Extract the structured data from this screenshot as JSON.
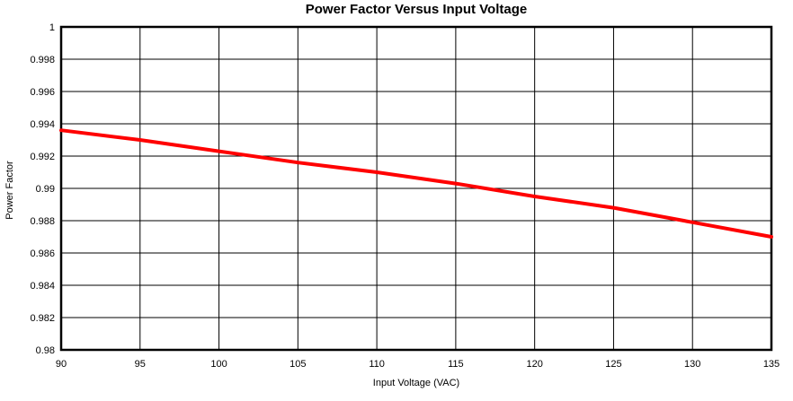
{
  "chart_data": {
    "type": "line",
    "title": "Power Factor Versus Input Voltage",
    "xlabel": "Input Voltage (VAC)",
    "ylabel": "Power Factor",
    "xlim": [
      90,
      135
    ],
    "ylim": [
      0.98,
      1.0
    ],
    "grid": true,
    "legend": false,
    "x_ticks": [
      90,
      95,
      100,
      105,
      110,
      115,
      120,
      125,
      130,
      135
    ],
    "x_tick_labels": [
      "90",
      "95",
      "100",
      "105",
      "110",
      "115",
      "120",
      "125",
      "130",
      "135"
    ],
    "y_ticks": [
      1,
      0.998,
      0.996,
      0.994,
      0.992,
      0.99,
      0.988,
      0.986,
      0.984,
      0.982,
      0.98
    ],
    "y_tick_labels": [
      "1",
      "0.998",
      "0.996",
      "0.994",
      "0.992",
      "0.99",
      "0.988",
      "0.986",
      "0.984",
      "0.982",
      "0.98"
    ],
    "x": [
      90,
      95,
      100,
      105,
      110,
      115,
      120,
      125,
      130,
      135
    ],
    "series": [
      {
        "name": "Power Factor",
        "color": "#FF0000",
        "values": [
          0.9936,
          0.993,
          0.9923,
          0.9916,
          0.991,
          0.9903,
          0.9895,
          0.9888,
          0.9879,
          0.987
        ]
      }
    ],
    "colors": {
      "grid": "#000000",
      "frame": "#000000",
      "text": "#000000",
      "line": "#FF0000",
      "background": "#FFFFFF"
    }
  }
}
